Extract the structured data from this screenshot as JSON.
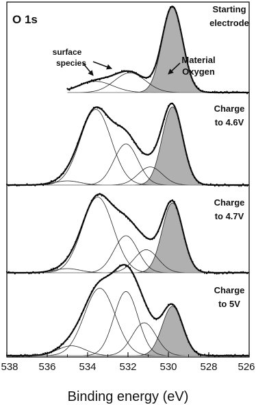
{
  "chart_data": {
    "type": "line",
    "panel_label": "O 1s",
    "xlabel": "Binding energy (eV)",
    "ylabel": "",
    "xlim": [
      538,
      526
    ],
    "x_ticks": [
      538,
      536,
      534,
      532,
      530,
      528,
      526
    ],
    "x_reversed": true,
    "grid": false,
    "annotations": {
      "surface_species": "surface\nspecies",
      "material_oxygen": "Material\nOxygen"
    },
    "spectra": [
      {
        "label": "Starting\nelectrode",
        "components": [
          {
            "center": 529.8,
            "height": 1.0,
            "fwhm": 1.2,
            "shaded": true
          },
          {
            "center": 531.9,
            "height": 0.23,
            "fwhm": 1.8,
            "shaded": false
          },
          {
            "center": 533.6,
            "height": 0.13,
            "fwhm": 2.0,
            "shaded": false
          }
        ]
      },
      {
        "label": "Charge\nto 4.6V",
        "components": [
          {
            "center": 529.8,
            "height": 0.95,
            "fwhm": 1.2,
            "shaded": true
          },
          {
            "center": 530.9,
            "height": 0.22,
            "fwhm": 1.4,
            "shaded": false
          },
          {
            "center": 532.1,
            "height": 0.5,
            "fwhm": 1.4,
            "shaded": false
          },
          {
            "center": 533.6,
            "height": 0.92,
            "fwhm": 1.8,
            "shaded": false
          },
          {
            "center": 535.0,
            "height": 0.05,
            "fwhm": 1.5,
            "shaded": false
          }
        ]
      },
      {
        "label": "Charge\nto 4.7V",
        "components": [
          {
            "center": 529.8,
            "height": 0.85,
            "fwhm": 1.2,
            "shaded": true
          },
          {
            "center": 531.1,
            "height": 0.28,
            "fwhm": 1.4,
            "shaded": false
          },
          {
            "center": 532.1,
            "height": 0.45,
            "fwhm": 1.4,
            "shaded": false
          },
          {
            "center": 533.5,
            "height": 0.92,
            "fwhm": 1.8,
            "shaded": false
          },
          {
            "center": 535.0,
            "height": 0.05,
            "fwhm": 1.5,
            "shaded": false
          }
        ]
      },
      {
        "label": "Charge\nto 5V",
        "components": [
          {
            "center": 529.8,
            "height": 0.6,
            "fwhm": 1.2,
            "shaded": true
          },
          {
            "center": 531.2,
            "height": 0.4,
            "fwhm": 1.4,
            "shaded": false
          },
          {
            "center": 532.1,
            "height": 0.78,
            "fwhm": 1.4,
            "shaded": false
          },
          {
            "center": 533.4,
            "height": 0.82,
            "fwhm": 1.8,
            "shaded": false
          },
          {
            "center": 534.8,
            "height": 0.12,
            "fwhm": 1.6,
            "shaded": false
          }
        ]
      }
    ]
  },
  "colors": {
    "shade": "#b0b0b0",
    "line": "#111111",
    "component": "#222222",
    "baseline": "#999999"
  }
}
